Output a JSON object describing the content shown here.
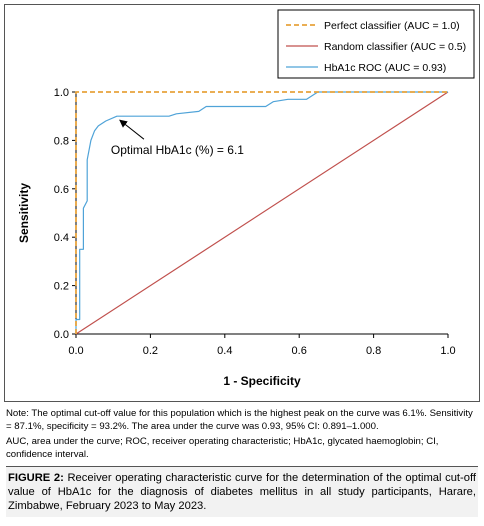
{
  "chart_data": {
    "type": "line",
    "title": "",
    "xlabel": "1 - Specificity",
    "ylabel": "Sensitivity",
    "xlim": [
      0.0,
      1.0
    ],
    "ylim": [
      0.0,
      1.0
    ],
    "xticks": [
      "0.0",
      "0.2",
      "0.4",
      "0.6",
      "0.8",
      "1.0"
    ],
    "yticks": [
      "0.0",
      "0.2",
      "0.4",
      "0.6",
      "0.8",
      "1.0"
    ],
    "grid": false,
    "legend_position": "top-right",
    "series": [
      {
        "name": "Perfect classifier (AUC = 1.0)",
        "color": "#e8a33c",
        "style": "dashed",
        "points": [
          [
            0.0,
            0.0
          ],
          [
            0.0,
            1.0
          ],
          [
            1.0,
            1.0
          ]
        ]
      },
      {
        "name": "Random classifier (AUC = 0.5)",
        "color": "#c0504d",
        "style": "solid",
        "points": [
          [
            0.0,
            0.0
          ],
          [
            1.0,
            1.0
          ]
        ]
      },
      {
        "name": "HbA1c ROC (AUC = 0.93)",
        "color": "#4fa3d8",
        "style": "solid",
        "points": [
          [
            0.0,
            0.0
          ],
          [
            0.0,
            0.06
          ],
          [
            0.01,
            0.06
          ],
          [
            0.01,
            0.35
          ],
          [
            0.02,
            0.35
          ],
          [
            0.02,
            0.52
          ],
          [
            0.03,
            0.55
          ],
          [
            0.03,
            0.72
          ],
          [
            0.04,
            0.8
          ],
          [
            0.05,
            0.84
          ],
          [
            0.06,
            0.86
          ],
          [
            0.08,
            0.88
          ],
          [
            0.11,
            0.9
          ],
          [
            0.25,
            0.9
          ],
          [
            0.27,
            0.91
          ],
          [
            0.33,
            0.92
          ],
          [
            0.35,
            0.94
          ],
          [
            0.51,
            0.94
          ],
          [
            0.53,
            0.96
          ],
          [
            0.57,
            0.97
          ],
          [
            0.62,
            0.97
          ],
          [
            0.65,
            1.0
          ],
          [
            0.67,
            1.0
          ],
          [
            1.0,
            1.0
          ]
        ]
      }
    ],
    "annotations": [
      {
        "text": "Optimal HbA1c (%) = 6.1",
        "point": [
          0.11,
          0.9
        ]
      }
    ]
  },
  "note": {
    "line": "Note: The optimal cut-off value for this population which is the highest peak on the curve was 6.1%. Sensitivity = 87.1%, specificity = 93.2%. The area under the curve was 0.93, 95% CI: 0.891–1.000.",
    "abbreviations": "AUC, area under the curve; ROC, receiver operating characteristic; HbA1c, glycated haemoglobin; CI, confidence interval."
  },
  "caption": {
    "label": "FIGURE 2:",
    "text": " Receiver operating characteristic curve for the determination of the optimal cut-off value of HbA1c for the diagnosis of diabetes mellitus in all study participants, Harare, Zimbabwe, February 2023 to May 2023."
  }
}
